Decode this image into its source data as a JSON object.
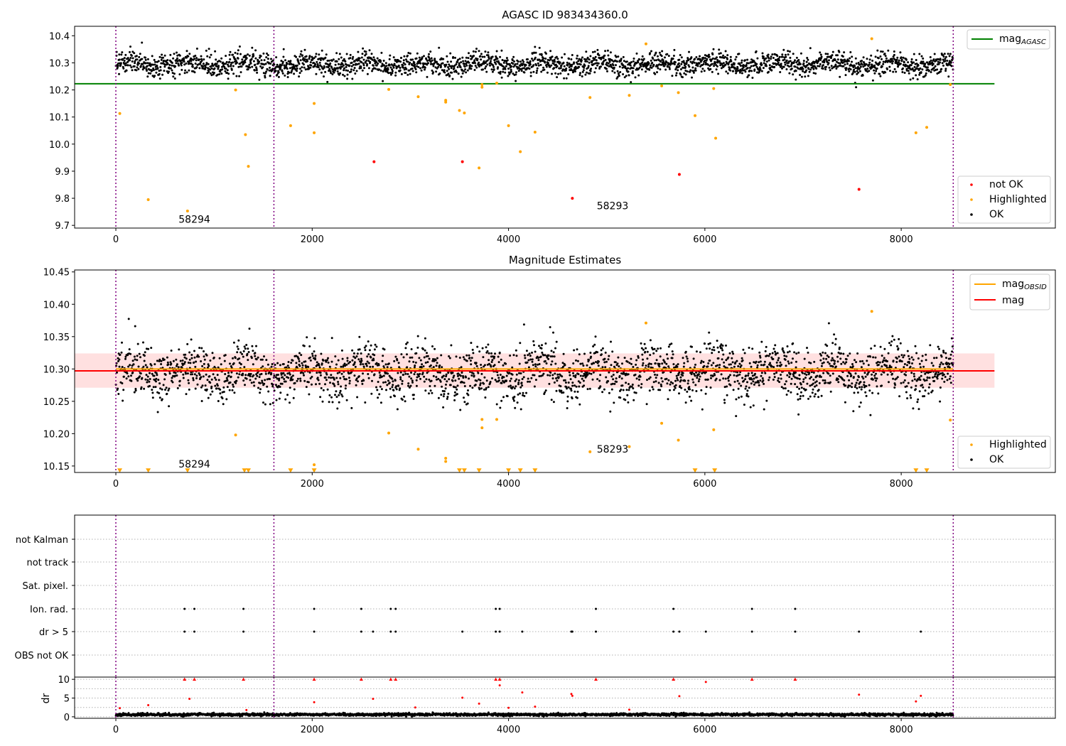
{
  "chart_data": [
    {
      "type": "scatter",
      "title": "AGASC ID 983434360.0",
      "xlim": [
        -420,
        9570
      ],
      "ylim": [
        9.69,
        10.435
      ],
      "xticks": [
        0,
        2000,
        4000,
        6000,
        8000
      ],
      "xtick_labels": [
        "0",
        "2000",
        "4000",
        "6000",
        "8000"
      ],
      "yticks": [
        9.7,
        9.8,
        9.9,
        10.0,
        10.1,
        10.2,
        10.3,
        10.4
      ],
      "ytick_labels": [
        "9.7",
        "9.8",
        "9.9",
        "10.0",
        "10.1",
        "10.2",
        "10.3",
        "10.4"
      ],
      "obsid_boundaries": [
        0,
        1610,
        8530
      ],
      "obsid_labels": [
        {
          "text": "58294",
          "x": 800,
          "y": 9.72
        },
        {
          "text": "58293",
          "x": 5060,
          "y": 9.77
        }
      ],
      "reference_lines": [
        {
          "legend": "mag",
          "subscript": "AGASC",
          "y": 10.223,
          "x_start": -420,
          "x_end": 8950,
          "color": "#008000"
        }
      ],
      "ok_band": {
        "center": 10.295,
        "amplitude": 0.03,
        "scatter": 0.045,
        "x_start": 0,
        "x_end": 8530,
        "count": 2600
      },
      "series": [
        {
          "name": "not OK",
          "color": "#ff0000",
          "points": [
            [
              2630,
              9.935
            ],
            [
              3530,
              9.935
            ],
            [
              4650,
              9.8
            ],
            [
              5740,
              9.888
            ],
            [
              7570,
              9.833
            ]
          ]
        },
        {
          "name": "Highlighted",
          "color": "#ffa500",
          "points": [
            [
              40,
              10.113
            ],
            [
              330,
              9.795
            ],
            [
              730,
              9.753
            ],
            [
              1220,
              10.2
            ],
            [
              1320,
              10.035
            ],
            [
              1350,
              9.918
            ],
            [
              1780,
              10.068
            ],
            [
              2020,
              10.15
            ],
            [
              2020,
              10.042
            ],
            [
              2780,
              10.202
            ],
            [
              3080,
              10.175
            ],
            [
              3360,
              10.162
            ],
            [
              3360,
              10.155
            ],
            [
              3500,
              10.124
            ],
            [
              3550,
              10.115
            ],
            [
              3700,
              9.912
            ],
            [
              3730,
              10.21
            ],
            [
              3730,
              10.22
            ],
            [
              3880,
              10.225
            ],
            [
              4000,
              10.068
            ],
            [
              4120,
              9.972
            ],
            [
              4270,
              10.044
            ],
            [
              4830,
              10.172
            ],
            [
              5230,
              10.18
            ],
            [
              5400,
              10.37
            ],
            [
              5560,
              10.215
            ],
            [
              5730,
              10.19
            ],
            [
              5900,
              10.105
            ],
            [
              6090,
              10.205
            ],
            [
              6110,
              10.022
            ],
            [
              7700,
              10.389
            ],
            [
              8150,
              10.042
            ],
            [
              8260,
              10.062
            ],
            [
              8500,
              10.22
            ]
          ]
        },
        {
          "name": "OK",
          "color": "#000000",
          "points": []
        }
      ],
      "legend_main": [
        "not OK",
        "Highlighted",
        "OK"
      ]
    },
    {
      "type": "scatter",
      "title": "Magnitude Estimates",
      "xlim": [
        -420,
        9570
      ],
      "ylim": [
        10.14,
        10.453
      ],
      "xticks": [
        0,
        2000,
        4000,
        6000,
        8000
      ],
      "xtick_labels": [
        "0",
        "2000",
        "4000",
        "6000",
        "8000"
      ],
      "yticks": [
        10.15,
        10.2,
        10.25,
        10.3,
        10.35,
        10.4,
        10.45
      ],
      "ytick_labels": [
        "10.15",
        "10.20",
        "10.25",
        "10.30",
        "10.35",
        "10.40",
        "10.45"
      ],
      "obsid_boundaries": [
        0,
        1610,
        8530
      ],
      "obsid_labels": [
        {
          "text": "58294",
          "x": 800,
          "y": 10.152
        },
        {
          "text": "58293",
          "x": 5060,
          "y": 10.175
        }
      ],
      "mag_band": {
        "center": 10.297,
        "low": 10.271,
        "high": 10.324,
        "x_start": -420,
        "x_end": 8950
      },
      "reference_lines": [
        {
          "legend": "mag",
          "subscript": "OBSID",
          "y": 10.3,
          "x_start": 0,
          "x_end": 8530,
          "color": "#ffa500"
        },
        {
          "legend": "mag",
          "subscript": "",
          "y": 10.297,
          "x_start": -420,
          "x_end": 8950,
          "color": "#ff0000"
        }
      ],
      "ok_band": {
        "center": 10.295,
        "amplitude": 0.03,
        "scatter": 0.045,
        "x_start": 0,
        "x_end": 8530,
        "count": 2600
      },
      "series": [
        {
          "name": "Highlighted",
          "color": "#ffa500",
          "points": [
            [
              1220,
              10.198
            ],
            [
              2020,
              10.152
            ],
            [
              2780,
              10.201
            ],
            [
              3080,
              10.176
            ],
            [
              3360,
              10.162
            ],
            [
              3360,
              10.157
            ],
            [
              3730,
              10.209
            ],
            [
              3730,
              10.222
            ],
            [
              3880,
              10.222
            ],
            [
              4830,
              10.172
            ],
            [
              5230,
              10.18
            ],
            [
              5400,
              10.371
            ],
            [
              5560,
              10.216
            ],
            [
              5730,
              10.19
            ],
            [
              6090,
              10.206
            ],
            [
              7700,
              10.389
            ],
            [
              8500,
              10.221
            ]
          ]
        },
        {
          "name": "OK",
          "color": "#000000",
          "points": []
        }
      ],
      "clipped_markers": {
        "color": "#ffa500",
        "y": 10.143,
        "x": [
          40,
          330,
          730,
          1310,
          1350,
          1780,
          2020,
          3500,
          3550,
          3700,
          4000,
          4120,
          4270,
          5900,
          6100,
          8150,
          8260
        ]
      },
      "legend_main": [
        "Highlighted",
        "OK"
      ]
    },
    {
      "type": "scatter",
      "title": "",
      "xlim": [
        -420,
        9570
      ],
      "categories": [
        "not Kalman",
        "not track",
        "Sat. pixel.",
        "Ion. rad.",
        "dr > 5",
        "OBS not OK"
      ],
      "obsid_boundaries": [
        0,
        1610,
        8530
      ],
      "flags": {
        "Ion. rad.": [
          700,
          800,
          1300,
          2020,
          2500,
          2800,
          2850,
          3870,
          3910,
          4890,
          5680,
          6480,
          6920
        ],
        "dr > 5": [
          700,
          800,
          1300,
          2020,
          2500,
          2620,
          2800,
          2850,
          3530,
          3870,
          3910,
          4140,
          4640,
          4650,
          4890,
          5680,
          5740,
          6010,
          6480,
          6920,
          7570,
          8200
        ]
      }
    },
    {
      "type": "scatter",
      "title": "",
      "ylabel": "dr",
      "xlim": [
        -420,
        9570
      ],
      "ylim": [
        -0.4,
        10.6
      ],
      "xticks": [
        0,
        2000,
        4000,
        6000,
        8000
      ],
      "xtick_labels": [
        "0",
        "2000",
        "4000",
        "6000",
        "8000"
      ],
      "yticks": [
        0,
        5,
        10
      ],
      "ytick_labels": [
        "0",
        "5",
        "10"
      ],
      "obsid_boundaries": [
        0,
        1610,
        8530
      ],
      "clipped_at": 10,
      "clipped_x": [
        700,
        800,
        1300,
        2020,
        2500,
        2800,
        2850,
        3870,
        3910,
        4890,
        5680,
        6480,
        6920
      ],
      "outliers": [
        [
          40,
          2.3
        ],
        [
          330,
          3.1
        ],
        [
          750,
          4.8
        ],
        [
          1330,
          1.8
        ],
        [
          2020,
          3.9
        ],
        [
          2620,
          4.8
        ],
        [
          3050,
          2.5
        ],
        [
          3530,
          5.1
        ],
        [
          3700,
          3.5
        ],
        [
          3910,
          8.4
        ],
        [
          4000,
          2.4
        ],
        [
          4140,
          6.5
        ],
        [
          4270,
          2.7
        ],
        [
          4640,
          6.1
        ],
        [
          4650,
          5.6
        ],
        [
          5230,
          1.9
        ],
        [
          5740,
          5.5
        ],
        [
          6010,
          9.3
        ],
        [
          7570,
          5.9
        ],
        [
          8150,
          4.1
        ],
        [
          8200,
          5.6
        ]
      ],
      "base_band": {
        "center": 0.6,
        "spread": 0.35,
        "x_start": 0,
        "x_end": 8530,
        "count": 2600
      }
    }
  ]
}
